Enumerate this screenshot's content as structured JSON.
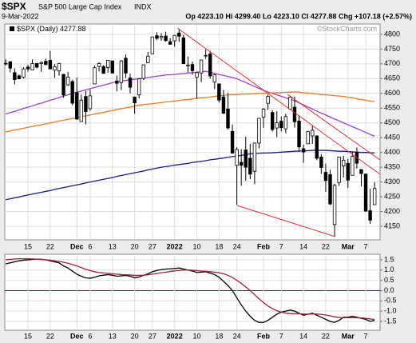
{
  "header": {
    "symbol": "$SPX",
    "name": "S&P 500 Large Cap Index",
    "exchange": "INDX",
    "date": "9-Mar-2022",
    "quote": "Op 4223.10 Hi 4299.40 Lo 4223.10 Cl 4277.88 Chg +107.18 (+2.57%)",
    "watermark": "©StockCharts.com",
    "legend_label": "$SPX (Daily) 4277.88"
  },
  "chart_data": [
    {
      "type": "candlestick",
      "color": "#000000",
      "categories": [
        null,
        null,
        null,
        null,
        null,
        "15",
        null,
        null,
        null,
        null,
        "22",
        null,
        null,
        null,
        null,
        null,
        "Dec",
        null,
        null,
        "6",
        null,
        null,
        null,
        null,
        "13",
        null,
        null,
        null,
        null,
        "20",
        null,
        null,
        null,
        "27",
        null,
        null,
        null,
        null,
        "2022",
        null,
        null,
        null,
        null,
        "10",
        null,
        null,
        null,
        null,
        "18",
        null,
        null,
        null,
        "24",
        null,
        null,
        null,
        null,
        null,
        "Feb",
        null,
        null,
        null,
        "7",
        null,
        null,
        null,
        null,
        "14",
        null,
        null,
        null,
        null,
        "22",
        null,
        null,
        null,
        null,
        "Mar",
        null,
        null,
        null,
        "7",
        null,
        null
      ],
      "open": [
        4701.5,
        4707.3,
        4670.3,
        4659.4,
        4655.2,
        4689.3,
        4679.4,
        4701.5,
        4700.7,
        4708.4,
        4712.0,
        4678.5,
        4675.8,
        4664.6,
        4628.8,
        4640.3,
        4602.8,
        4504.7,
        4589.5,
        4548.4,
        4631.97,
        4690.9,
        4691.0,
        4687.6,
        4710.3,
        4642.0,
        4636.5,
        4719.1,
        4652.5,
        4587.9,
        4594.96,
        4650.4,
        4703.96,
        4733.99,
        4795.5,
        4788.6,
        4794.2,
        4775.2,
        4778.1,
        4804.5,
        4787.99,
        4693.4,
        4697.7,
        4655.3,
        4669.1,
        4728.6,
        4733.6,
        4637.99,
        4632.2,
        4588.0,
        4547.4,
        4471.4,
        4356.3,
        4366.6,
        4408.4,
        4380.6,
        4336.2,
        4431.8,
        4519.6,
        4566.4,
        4535.4,
        4482.8,
        4505.8,
        4480.0,
        4547.0,
        4553.2,
        4506.3,
        4412.6,
        4429.3,
        4455.8,
        4456.1,
        4384.6,
        4332.7,
        4324.9,
        4155.8,
        4298.4,
        4354.2,
        4363.1,
        4322.6,
        4401.3,
        4342.1,
        4327.0,
        4202.7,
        4223.1
      ],
      "high": [
        4714.9,
        4708.5,
        4684.9,
        4664.6,
        4688.5,
        4697.4,
        4714.9,
        4701.5,
        4708.8,
        4717.8,
        4743.8,
        4699.4,
        4702.9,
        4664.6,
        4672.9,
        4646.0,
        4652.9,
        4595.5,
        4608.0,
        4612.6,
        4694.0,
        4705.1,
        4695.3,
        4713.6,
        4710.3,
        4660.5,
        4712.6,
        4731.99,
        4666.7,
        4587.9,
        4651.1,
        4697.7,
        4740.7,
        4791.5,
        4807.0,
        4804.1,
        4808.9,
        4786.8,
        4796.6,
        4818.6,
        4797.7,
        4725.0,
        4707.95,
        4673.0,
        4714.1,
        4749.0,
        4744.1,
        4665.1,
        4632.2,
        4611.6,
        4602.1,
        4494.5,
        4417.4,
        4411.0,
        4453.2,
        4428.7,
        4432.7,
        4516.9,
        4550.5,
        4595.3,
        4542.9,
        4539.7,
        4521.9,
        4531.3,
        4590.0,
        4588.9,
        4526.3,
        4426.2,
        4472.8,
        4490.0,
        4456.1,
        4394.6,
        4362.1,
        4341.5,
        4294.7,
        4385.3,
        4388.8,
        4378.5,
        4401.5,
        4416.8,
        4342.1,
        4327.0,
        4276.9,
        4299.4
      ],
      "low": [
        4694.4,
        4670.9,
        4630.9,
        4648.3,
        4650.4,
        4672.9,
        4679.4,
        4684.4,
        4672.8,
        4694.2,
        4682.2,
        4652.7,
        4659.9,
        4585.4,
        4625.3,
        4560.0,
        4510.3,
        4504.7,
        4495.1,
        4540.5,
        4632.0,
        4674.5,
        4665.98,
        4670.2,
        4667.6,
        4606.5,
        4611.2,
        4651.9,
        4600.2,
        4531.1,
        4583.2,
        4645.5,
        4703.96,
        4733.99,
        4780.0,
        4778.1,
        4775.3,
        4765.8,
        4758.2,
        4774.3,
        4699.4,
        4671.3,
        4662.7,
        4582.2,
        4638.3,
        4716.6,
        4650.3,
        4614.8,
        4568.7,
        4530.2,
        4477.95,
        4395.3,
        4222.6,
        4287.1,
        4304.8,
        4309.5,
        4292.5,
        4414.0,
        4483.5,
        4544.3,
        4470.4,
        4451.5,
        4471.5,
        4465.4,
        4547.0,
        4484.3,
        4401.4,
        4364.8,
        4429.3,
        4429.0,
        4373.8,
        4327.2,
        4267.1,
        4221.5,
        4114.65,
        4286.8,
        4315.1,
        4279.5,
        4322.6,
        4345.6,
        4284.98,
        4199.9,
        4157.9,
        4223.1
      ],
      "close": [
        4701.7,
        4685.3,
        4646.7,
        4649.3,
        4682.9,
        4682.8,
        4700.9,
        4688.7,
        4704.5,
        4698.0,
        4682.9,
        4690.7,
        4701.5,
        4594.6,
        4655.3,
        4567.0,
        4513.0,
        4577.1,
        4538.4,
        4591.7,
        4686.8,
        4701.2,
        4667.5,
        4712.0,
        4669.0,
        4634.1,
        4709.9,
        4668.7,
        4620.6,
        4568.0,
        4649.2,
        4696.6,
        4725.8,
        4791.2,
        4786.4,
        4793.1,
        4778.7,
        4766.2,
        4796.6,
        4793.5,
        4700.6,
        4696.1,
        4677.0,
        4670.3,
        4713.1,
        4726.4,
        4659.0,
        4662.9,
        4577.1,
        4532.8,
        4482.7,
        4397.9,
        4410.1,
        4356.5,
        4349.9,
        4326.5,
        4431.9,
        4515.6,
        4546.5,
        4589.4,
        4477.4,
        4500.5,
        4483.9,
        4521.5,
        4587.2,
        4504.1,
        4418.6,
        4401.7,
        4471.1,
        4475.0,
        4380.3,
        4348.9,
        4304.8,
        4225.5,
        4288.7,
        4384.7,
        4373.9,
        4306.3,
        4386.5,
        4363.5,
        4328.9,
        4201.1,
        4170.7,
        4277.9
      ],
      "series": [
        {
          "color": "#a040d0",
          "values": [
            4530,
            4535,
            4539,
            4544,
            4549,
            4553,
            4558,
            4563,
            4567,
            4572,
            4577,
            4581,
            4586,
            4591,
            4595,
            4600,
            4604,
            4608,
            4612,
            4616,
            4620,
            4624,
            4628,
            4632,
            4636,
            4640,
            4642,
            4644,
            4646,
            4648,
            4650,
            4652,
            4654,
            4656,
            4658,
            4660,
            4662,
            4663,
            4664,
            4666,
            4667,
            4669,
            4670,
            4672,
            4673,
            4675,
            4671,
            4668,
            4664,
            4661,
            4657,
            4654,
            4650,
            4643,
            4637,
            4630,
            4623,
            4617,
            4610,
            4605,
            4600,
            4595,
            4590,
            4585,
            4580,
            4575,
            4568,
            4561,
            4554,
            4547,
            4540,
            4533,
            4527,
            4520,
            4513,
            4507,
            4500,
            4494,
            4487,
            4481,
            4474,
            4468,
            4461,
            4455
          ]
        },
        {
          "color": "#f07820",
          "values": [
            4470,
            4473,
            4476,
            4479,
            4482,
            4485,
            4488,
            4491,
            4494,
            4497,
            4500,
            4503,
            4506,
            4509,
            4512,
            4515,
            4518,
            4521,
            4524,
            4527,
            4530,
            4533,
            4536,
            4539,
            4542,
            4545,
            4548,
            4551,
            4554,
            4557,
            4560,
            4562,
            4564,
            4565,
            4567,
            4569,
            4571,
            4572,
            4574,
            4576,
            4578,
            4579,
            4581,
            4583,
            4585,
            4586,
            4588,
            4590,
            4592,
            4593,
            4595,
            4596,
            4596,
            4597,
            4598,
            4598,
            4599,
            4600,
            4600,
            4601,
            4602,
            4602,
            4603,
            4604,
            4604,
            4605,
            4604,
            4602,
            4601,
            4599,
            4598,
            4596,
            4595,
            4594,
            4592,
            4591,
            4590,
            4587,
            4585,
            4582,
            4579,
            4577,
            4574,
            4572
          ]
        },
        {
          "color": "#1a1a8c",
          "values": [
            4240,
            4243,
            4246,
            4249,
            4253,
            4256,
            4259,
            4262,
            4265,
            4268,
            4271,
            4275,
            4278,
            4281,
            4284,
            4287,
            4290,
            4293,
            4297,
            4300,
            4303,
            4306,
            4309,
            4312,
            4315,
            4319,
            4322,
            4325,
            4328,
            4331,
            4334,
            4337,
            4341,
            4344,
            4347,
            4350,
            4352,
            4354,
            4357,
            4359,
            4361,
            4363,
            4366,
            4368,
            4370,
            4372,
            4375,
            4377,
            4379,
            4381,
            4384,
            4386,
            4388,
            4390,
            4393,
            4395,
            4396,
            4397,
            4398,
            4398,
            4399,
            4400,
            4401,
            4402,
            4403,
            4404,
            4405,
            4405,
            4406,
            4407,
            4408,
            4407,
            4407,
            4406,
            4405,
            4404,
            4404,
            4403,
            4402,
            4401,
            4400,
            4400,
            4399,
            4398
          ]
        }
      ],
      "ylim": [
        4104,
        4835
      ],
      "yticks": [
        4150,
        4200,
        4250,
        4300,
        4350,
        4400,
        4450,
        4500,
        4550,
        4600,
        4650,
        4700,
        4750,
        4800
      ],
      "grid": true
    },
    {
      "type": "line",
      "categories": [
        null,
        null,
        null,
        null,
        null,
        "15",
        null,
        null,
        null,
        null,
        "22",
        null,
        null,
        null,
        null,
        null,
        "Dec",
        null,
        null,
        "6",
        null,
        null,
        null,
        null,
        "13",
        null,
        null,
        null,
        null,
        "20",
        null,
        null,
        null,
        "27",
        null,
        null,
        null,
        null,
        "2022",
        null,
        null,
        null,
        null,
        "10",
        null,
        null,
        null,
        null,
        "18",
        null,
        null,
        null,
        "24",
        null,
        null,
        null,
        null,
        null,
        "Feb",
        null,
        null,
        null,
        "7",
        null,
        null,
        null,
        null,
        "14",
        null,
        null,
        null,
        null,
        "22",
        null,
        null,
        null,
        null,
        "Mar",
        null,
        null,
        null,
        "7",
        null,
        null
      ],
      "series": [
        {
          "color": "#000000",
          "values": [
            1.3,
            1.35,
            1.4,
            1.45,
            1.48,
            1.5,
            1.52,
            1.53,
            1.52,
            1.5,
            1.45,
            1.4,
            1.35,
            1.2,
            1.1,
            0.95,
            0.8,
            0.7,
            0.62,
            0.6,
            0.65,
            0.72,
            0.75,
            0.78,
            0.75,
            0.7,
            0.72,
            0.74,
            0.7,
            0.62,
            0.66,
            0.74,
            0.82,
            0.92,
            0.98,
            1.02,
            1.05,
            1.06,
            1.08,
            1.1,
            1.05,
            1.0,
            0.95,
            0.88,
            0.9,
            0.92,
            0.85,
            0.78,
            0.65,
            0.45,
            0.25,
            0.0,
            -0.35,
            -0.7,
            -1.0,
            -1.25,
            -1.45,
            -1.55,
            -1.55,
            -1.45,
            -1.3,
            -1.15,
            -1.05,
            -1.0,
            -0.95,
            -1.0,
            -1.1,
            -1.2,
            -1.15,
            -1.1,
            -1.2,
            -1.3,
            -1.4,
            -1.5,
            -1.55,
            -1.45,
            -1.3,
            -1.3,
            -1.25,
            -1.3,
            -1.35,
            -1.4,
            -1.5,
            -1.45
          ]
        },
        {
          "color": "#a0203c",
          "values": [
            1.5,
            1.52,
            1.54,
            1.55,
            1.55,
            1.55,
            1.54,
            1.53,
            1.52,
            1.5,
            1.48,
            1.45,
            1.42,
            1.38,
            1.33,
            1.27,
            1.2,
            1.12,
            1.04,
            0.97,
            0.92,
            0.88,
            0.86,
            0.84,
            0.82,
            0.8,
            0.78,
            0.77,
            0.76,
            0.74,
            0.74,
            0.75,
            0.77,
            0.8,
            0.83,
            0.87,
            0.9,
            0.93,
            0.96,
            0.98,
            1.0,
            1.0,
            0.99,
            0.97,
            0.95,
            0.94,
            0.92,
            0.9,
            0.87,
            0.82,
            0.74,
            0.64,
            0.5,
            0.35,
            0.18,
            0.0,
            -0.2,
            -0.4,
            -0.58,
            -0.75,
            -0.88,
            -0.98,
            -1.05,
            -1.1,
            -1.12,
            -1.13,
            -1.13,
            -1.14,
            -1.15,
            -1.14,
            -1.14,
            -1.16,
            -1.19,
            -1.23,
            -1.28,
            -1.31,
            -1.32,
            -1.32,
            -1.32,
            -1.32,
            -1.33,
            -1.35,
            -1.38,
            -1.41
          ]
        }
      ],
      "ylim": [
        -1.93,
        1.77
      ],
      "yticks": [
        -1.5,
        {
          "value": -1,
          "label": "-1.0"
        },
        -0.5,
        {
          "value": 0,
          "label": "0.0"
        },
        0.5,
        {
          "value": 1,
          "label": "1.0"
        },
        1.5
      ],
      "grid": true,
      "zero_line_color": "#990033"
    }
  ]
}
